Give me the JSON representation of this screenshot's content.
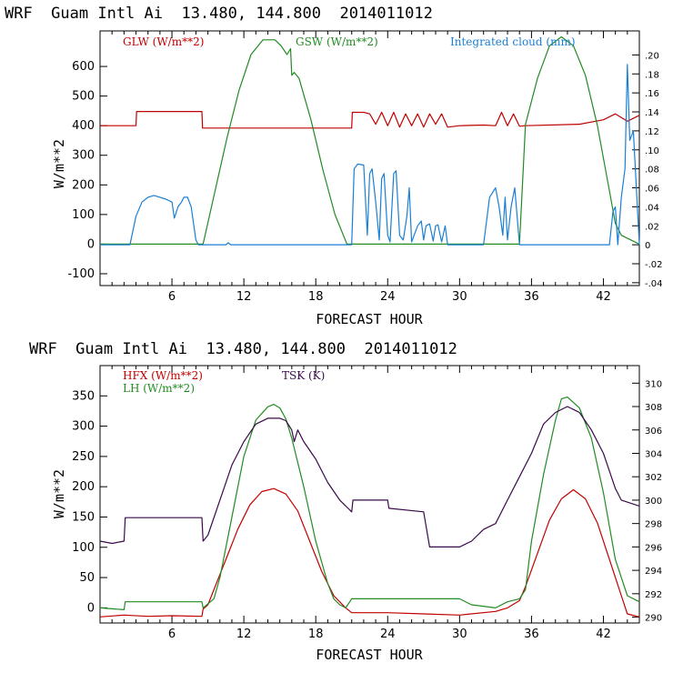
{
  "colors": {
    "red": "#c00000",
    "green": "#228b22",
    "blue": "#1a7fd4",
    "purple": "#3a0a4a",
    "black": "#000000"
  },
  "chart_data": [
    {
      "type": "line",
      "title": "WRF  Guam Intl Ai  13.480, 144.800  2014011012",
      "xlabel": "FORECAST HOUR",
      "ylabel": "W/m**2",
      "xlim": [
        0,
        45
      ],
      "ylim": [
        -140,
        720
      ],
      "xticks": [
        "6",
        "12",
        "18",
        "24",
        "30",
        "36",
        "42"
      ],
      "xtick_values": [
        6,
        12,
        18,
        24,
        30,
        36,
        42
      ],
      "yticks": [
        "-100",
        "0",
        "100",
        "200",
        "300",
        "400",
        "500",
        "600"
      ],
      "ytick_values": [
        -100,
        0,
        100,
        200,
        300,
        400,
        500,
        600
      ],
      "y2lim": [
        -0.043,
        0.2253
      ],
      "y2ticks": [
        "-.04",
        "-.02",
        "0",
        ".02",
        ".04",
        ".06",
        ".08",
        ".10",
        ".12",
        ".14",
        ".16",
        ".18",
        ".20"
      ],
      "y2tick_values": [
        -0.04,
        -0.02,
        0,
        0.02,
        0.04,
        0.06,
        0.08,
        0.1,
        0.12,
        0.14,
        0.16,
        0.18,
        0.2
      ],
      "series": [
        {
          "name": "GLW (W/m**2)",
          "color_key": "red",
          "axis": "left",
          "x": [
            0,
            3,
            3.05,
            8.5,
            8.55,
            21,
            21.05,
            22,
            22.5,
            23,
            23.5,
            24,
            24.5,
            25,
            25.5,
            26,
            26.5,
            27,
            27.5,
            28,
            28.5,
            29,
            30,
            32,
            33,
            33.5,
            34,
            34.5,
            35,
            35.5,
            40,
            42,
            43,
            44,
            45
          ],
          "values": [
            400,
            400,
            448,
            448,
            392,
            392,
            445,
            445,
            440,
            405,
            445,
            400,
            445,
            395,
            440,
            400,
            440,
            395,
            440,
            405,
            440,
            395,
            400,
            402,
            400,
            445,
            400,
            440,
            398,
            400,
            405,
            420,
            440,
            415,
            435
          ]
        },
        {
          "name": "GSW (W/m**2)",
          "color_key": "green",
          "axis": "left",
          "x": [
            0,
            8.6,
            9.6,
            10.6,
            11.6,
            12.6,
            13.6,
            14.6,
            15.1,
            15.6,
            15.9,
            16,
            16.2,
            16.6,
            17.6,
            18.6,
            19.6,
            20.6,
            35,
            35.5,
            36.5,
            37.5,
            38.5,
            39.5,
            40.5,
            41.5,
            42.5,
            43,
            43.5,
            45
          ],
          "values": [
            0,
            0,
            180,
            360,
            520,
            640,
            690,
            690,
            670,
            640,
            660,
            570,
            580,
            560,
            420,
            250,
            100,
            0,
            0,
            405,
            560,
            670,
            700,
            670,
            570,
            400,
            180,
            70,
            30,
            0
          ]
        },
        {
          "name": "Integrated cloud (mm)",
          "color_key": "blue",
          "axis": "right",
          "x": [
            0,
            2.5,
            3,
            3.5,
            4,
            4.5,
            5,
            5.5,
            6,
            6.2,
            6.5,
            6.8,
            7,
            7.3,
            7.6,
            8,
            8.2,
            8.5,
            10.5,
            10.7,
            10.9,
            21,
            21.2,
            21.5,
            22,
            22.3,
            22.5,
            22.7,
            23,
            23.3,
            23.5,
            23.7,
            24,
            24.2,
            24.5,
            24.7,
            25,
            25.3,
            25.6,
            25.8,
            26,
            26.5,
            26.8,
            27,
            27.2,
            27.5,
            27.8,
            28,
            28.2,
            28.5,
            28.8,
            29,
            32,
            32.5,
            33,
            33.3,
            33.6,
            33.8,
            34,
            34.3,
            34.6,
            35,
            42.5,
            42.8,
            43,
            43.2,
            43.5,
            43.8,
            44,
            44.2,
            44.5,
            45
          ],
          "values": [
            0,
            0,
            0.03,
            0.045,
            0.05,
            0.052,
            0.05,
            0.048,
            0.045,
            0.028,
            0.04,
            0.045,
            0.05,
            0.05,
            0.04,
            0.005,
            0,
            0,
            0,
            0.002,
            0,
            0,
            0.08,
            0.085,
            0.084,
            0.01,
            0.075,
            0.08,
            0.045,
            0.005,
            0.07,
            0.075,
            0.01,
            0.003,
            0.075,
            0.078,
            0.01,
            0.005,
            0.03,
            0.06,
            0.003,
            0.02,
            0.025,
            0.005,
            0.02,
            0.022,
            0.004,
            0.02,
            0.021,
            0.003,
            0.02,
            0,
            0,
            0.05,
            0.06,
            0.04,
            0.01,
            0.05,
            0.005,
            0.04,
            0.06,
            0,
            0,
            0.035,
            0.04,
            0,
            0.05,
            0.08,
            0.19,
            0.11,
            0.12,
            0
          ]
        }
      ]
    },
    {
      "type": "line",
      "title": "WRF  Guam Intl Ai  13.480, 144.800  2014011012",
      "xlabel": "FORECAST HOUR",
      "ylabel": "W/m**2",
      "xlim": [
        0,
        45
      ],
      "ylim": [
        -25,
        400
      ],
      "xticks": [
        "6",
        "12",
        "18",
        "24",
        "30",
        "36",
        "42"
      ],
      "xtick_values": [
        6,
        12,
        18,
        24,
        30,
        36,
        42
      ],
      "yticks": [
        "0",
        "50",
        "100",
        "150",
        "200",
        "250",
        "300",
        "350"
      ],
      "ytick_values": [
        0,
        50,
        100,
        150,
        200,
        250,
        300,
        350
      ],
      "y2lim": [
        289.5,
        311.5
      ],
      "y2ticks": [
        "290",
        "292",
        "294",
        "296",
        "298",
        "300",
        "302",
        "304",
        "306",
        "308",
        "310"
      ],
      "y2tick_values": [
        290,
        292,
        294,
        296,
        298,
        300,
        302,
        304,
        306,
        308,
        310
      ],
      "series": [
        {
          "name": "HFX (W/m**2)",
          "color_key": "red",
          "axis": "left",
          "x": [
            0,
            2,
            4,
            6,
            8.5,
            8.6,
            9,
            9.5,
            10.5,
            11.5,
            12.5,
            13.5,
            14.5,
            15.5,
            16.5,
            17.5,
            18.5,
            19.5,
            20.5,
            21,
            24,
            27,
            30,
            33,
            34,
            35,
            35.5,
            36.5,
            37.5,
            38.5,
            39.5,
            40.5,
            41.5,
            42.5,
            43.5,
            44,
            45
          ],
          "values": [
            -15,
            -12,
            -14,
            -13,
            -14,
            -2,
            5,
            30,
            80,
            130,
            170,
            192,
            197,
            188,
            160,
            110,
            60,
            20,
            0,
            -8,
            -8,
            -10,
            -12,
            -6,
            0,
            12,
            35,
            90,
            145,
            180,
            195,
            180,
            140,
            80,
            20,
            -10,
            -15
          ]
        },
        {
          "name": "LH (W/m**2)",
          "color_key": "green",
          "axis": "left",
          "x": [
            0,
            2,
            2.1,
            8.5,
            8.6,
            9.5,
            10,
            11,
            12,
            13,
            14,
            14.5,
            15,
            15.5,
            16,
            17,
            18,
            19,
            19.5,
            20,
            20.5,
            21,
            30,
            31,
            33,
            34,
            35,
            35.5,
            36,
            37,
            38,
            38.5,
            39,
            40,
            41,
            42,
            43,
            44,
            45
          ],
          "values": [
            0,
            -3,
            10,
            10,
            0,
            15,
            50,
            150,
            250,
            310,
            332,
            336,
            330,
            312,
            280,
            200,
            110,
            40,
            15,
            5,
            0,
            15,
            15,
            5,
            0,
            10,
            15,
            30,
            110,
            220,
            310,
            345,
            348,
            330,
            280,
            190,
            80,
            20,
            10
          ]
        },
        {
          "name": "TSK (K)",
          "color_key": "purple",
          "axis": "right",
          "x": [
            0,
            1,
            2,
            2.1,
            8.5,
            8.6,
            9,
            10,
            11,
            12,
            13,
            14,
            15,
            15.5,
            16,
            16.2,
            16.5,
            17,
            18,
            19,
            20,
            21,
            21.1,
            24,
            24.1,
            27,
            27.5,
            29,
            30,
            31,
            32,
            33,
            34,
            35,
            36,
            37,
            38,
            39,
            40,
            41,
            42,
            43,
            43.5,
            45
          ],
          "values": [
            296.5,
            296.3,
            296.5,
            298.5,
            298.5,
            296.5,
            297,
            300,
            303,
            305,
            306.5,
            307,
            307,
            306.8,
            306,
            305,
            306,
            305,
            303.5,
            301.5,
            300,
            299,
            300,
            300,
            299.3,
            299,
            296,
            296,
            296,
            296.5,
            297.5,
            298,
            300,
            302,
            304,
            306.5,
            307.5,
            308,
            307.5,
            306,
            304,
            301,
            300,
            299.5
          ]
        }
      ]
    }
  ]
}
